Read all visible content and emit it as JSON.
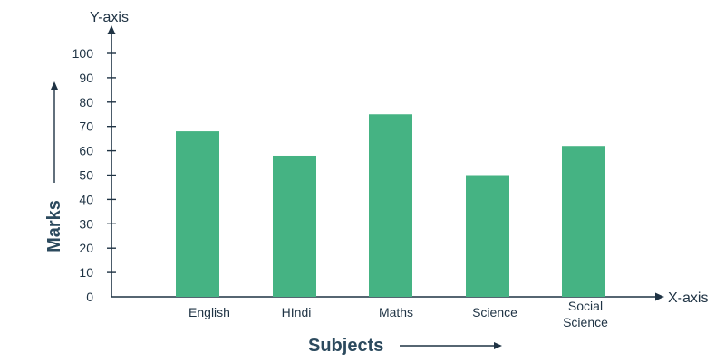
{
  "chart_data": {
    "type": "bar",
    "categories": [
      "English",
      "HIndi",
      "Maths",
      "Science",
      "Social Science"
    ],
    "category_lines": [
      [
        "English"
      ],
      [
        "HIndi"
      ],
      [
        "Maths"
      ],
      [
        "Science"
      ],
      [
        "Social",
        "Science"
      ]
    ],
    "values": [
      68,
      58,
      75,
      50,
      62
    ],
    "ylim": [
      0,
      100
    ],
    "yticks": [
      0,
      10,
      20,
      30,
      40,
      50,
      60,
      70,
      80,
      90,
      100
    ],
    "xlabel": "Subjects",
    "ylabel": "Marks",
    "x_axis_label": "X-axis",
    "y_axis_label": "Y-axis",
    "bar_color": "#45b383",
    "axis_color": "#1f3344",
    "grid": false,
    "legend": "none"
  }
}
